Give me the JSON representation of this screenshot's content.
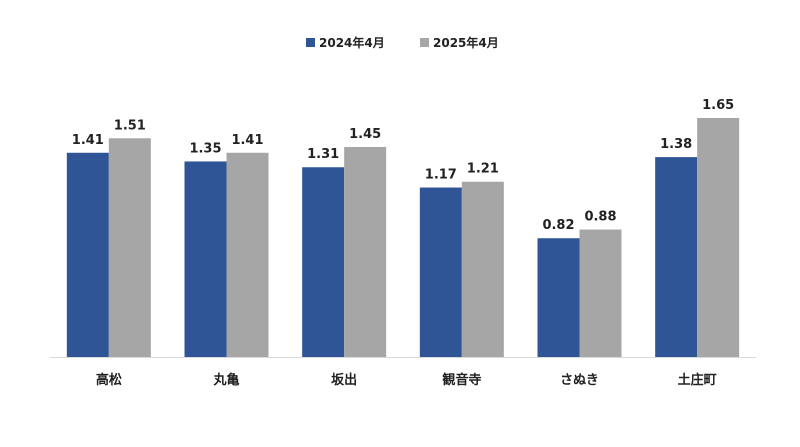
{
  "chart_data": {
    "type": "bar",
    "categories": [
      "高松",
      "丸亀",
      "坂出",
      "観音寺",
      "さぬき",
      "土庄町"
    ],
    "series": [
      {
        "name": "2024年4月",
        "color": "#2f5597",
        "values": [
          1.41,
          1.35,
          1.31,
          1.17,
          0.82,
          1.38
        ]
      },
      {
        "name": "2025年4月",
        "color": "#a6a6a6",
        "values": [
          1.51,
          1.41,
          1.45,
          1.21,
          0.88,
          1.65
        ]
      }
    ],
    "title": "",
    "xlabel": "",
    "ylabel": "",
    "ylim": [
      0,
      1.65
    ],
    "grid": false,
    "legend": "top-center",
    "data_labels": true
  }
}
